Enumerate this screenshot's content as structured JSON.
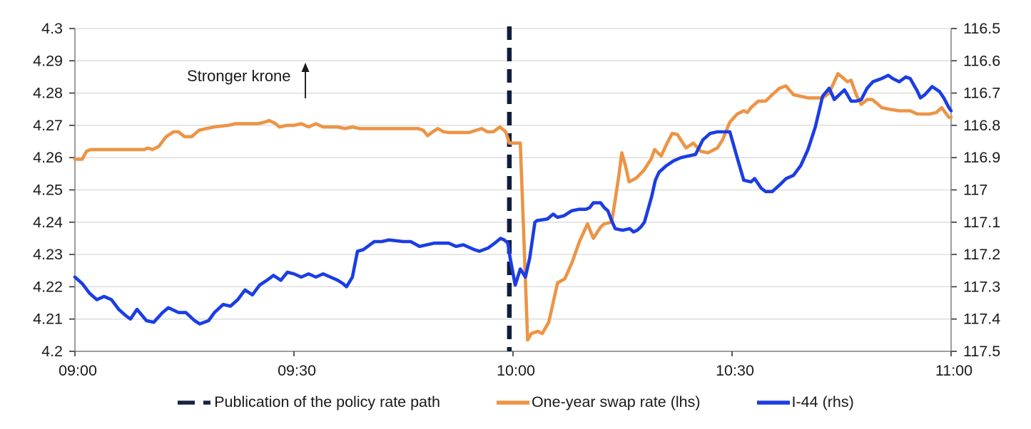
{
  "annotation": {
    "text": "Stronger krone",
    "arrow_icon": "up-arrow"
  },
  "legend": {
    "items": [
      {
        "label": "Publication of the policy rate path",
        "marker": "dashed-line",
        "color": "#16243F"
      },
      {
        "label": "One-year swap rate (lhs)",
        "marker": "solid-line",
        "color": "#EC9445"
      },
      {
        "label": "I-44 (rhs)",
        "marker": "solid-line",
        "color": "#1B3DE4"
      }
    ]
  },
  "colors": {
    "swap_rate_line": "#EC9445",
    "i44_line": "#1B3DE4",
    "event_line": "#101D3C",
    "gridline": "#d9d9d9",
    "spine": "#7f7f7f",
    "tick": "#333333",
    "text": "#1a1a1a"
  },
  "chart_data": {
    "type": "line",
    "title": "",
    "grid": "horizontal",
    "legend_position": "bottom-center",
    "x_axis": {
      "tick_labels": [
        "09:00",
        "09:30",
        "10:00",
        "10:30",
        "11:00"
      ],
      "tick_minutes": [
        0,
        30,
        60,
        90,
        120
      ],
      "range_minutes": [
        0,
        120
      ]
    },
    "y_axis_left": {
      "name": "One-year swap rate",
      "tick_labels": [
        "4.3",
        "4.29",
        "4.28",
        "4.27",
        "4.26",
        "4.25",
        "4.24",
        "4.23",
        "4.22",
        "4.21",
        "4.2"
      ],
      "range": [
        4.2,
        4.3
      ],
      "direction": "normal"
    },
    "y_axis_right": {
      "name": "I-44 index",
      "tick_labels": [
        "116.5",
        "116.6",
        "116.7",
        "116.8",
        "116.9",
        "117",
        "117.1",
        "117.2",
        "117.3",
        "117.4",
        "117.5"
      ],
      "range": [
        116.5,
        117.5
      ],
      "direction": "inverted"
    },
    "event_line": {
      "label": "Publication of the policy rate path",
      "time_minutes": 59.5,
      "style": "dashed",
      "color": "#101D3C"
    },
    "series": [
      {
        "name": "One-year swap rate (lhs)",
        "axis": "left",
        "color": "#EC9445",
        "points": [
          [
            0,
            4.2595
          ],
          [
            1,
            4.2595
          ],
          [
            1.6,
            4.262
          ],
          [
            2.2,
            4.2625
          ],
          [
            9.5,
            4.2625
          ],
          [
            10,
            4.263
          ],
          [
            10.6,
            4.2625
          ],
          [
            11.5,
            4.2635
          ],
          [
            12.5,
            4.2665
          ],
          [
            13.5,
            4.268
          ],
          [
            14.2,
            4.268
          ],
          [
            15,
            4.2665
          ],
          [
            16,
            4.2665
          ],
          [
            17,
            4.2685
          ],
          [
            18,
            4.269
          ],
          [
            19,
            4.2695
          ],
          [
            21,
            4.27
          ],
          [
            22,
            4.2705
          ],
          [
            25,
            4.2705
          ],
          [
            26,
            4.271
          ],
          [
            26.6,
            4.2715
          ],
          [
            27.5,
            4.2705
          ],
          [
            28,
            4.2695
          ],
          [
            29,
            4.27
          ],
          [
            30,
            4.27
          ],
          [
            31,
            4.2705
          ],
          [
            32,
            4.2695
          ],
          [
            33,
            4.2705
          ],
          [
            34,
            4.2695
          ],
          [
            36,
            4.2695
          ],
          [
            37,
            4.269
          ],
          [
            38,
            4.2695
          ],
          [
            39,
            4.269
          ],
          [
            47,
            4.269
          ],
          [
            47.7,
            4.2685
          ],
          [
            48.3,
            4.2668
          ],
          [
            49,
            4.268
          ],
          [
            49.7,
            4.269
          ],
          [
            50.5,
            4.268
          ],
          [
            51.2,
            4.2678
          ],
          [
            54,
            4.2678
          ],
          [
            55,
            4.2685
          ],
          [
            55.7,
            4.269
          ],
          [
            56.5,
            4.268
          ],
          [
            57.3,
            4.268
          ],
          [
            58.2,
            4.2695
          ],
          [
            59,
            4.268
          ],
          [
            59.5,
            4.2645
          ],
          [
            61,
            4.2645
          ],
          [
            61.3,
            4.2465
          ],
          [
            62,
            4.2035
          ],
          [
            62.5,
            4.2055
          ],
          [
            63.4,
            4.2062
          ],
          [
            64,
            4.2055
          ],
          [
            64.9,
            4.209
          ],
          [
            66.1,
            4.2212
          ],
          [
            67.1,
            4.2225
          ],
          [
            68.1,
            4.2276
          ],
          [
            69.1,
            4.234
          ],
          [
            70.2,
            4.2395
          ],
          [
            71,
            4.235
          ],
          [
            72,
            4.2385
          ],
          [
            72.5,
            4.2395
          ],
          [
            73.5,
            4.24
          ],
          [
            74,
            4.247
          ],
          [
            74.5,
            4.2545
          ],
          [
            74.9,
            4.2615
          ],
          [
            75.4,
            4.2575
          ],
          [
            75.9,
            4.2525
          ],
          [
            76.9,
            4.2537
          ],
          [
            77.9,
            4.256
          ],
          [
            78.9,
            4.2595
          ],
          [
            79.4,
            4.2625
          ],
          [
            80.3,
            4.2605
          ],
          [
            81,
            4.264
          ],
          [
            81.8,
            4.2675
          ],
          [
            82.5,
            4.2672
          ],
          [
            83.7,
            4.263
          ],
          [
            84.7,
            4.2645
          ],
          [
            85.7,
            4.262
          ],
          [
            86.7,
            4.2615
          ],
          [
            88,
            4.263
          ],
          [
            88.7,
            4.2655
          ],
          [
            89.7,
            4.271
          ],
          [
            90.7,
            4.2735
          ],
          [
            91.6,
            4.2745
          ],
          [
            92.1,
            4.274
          ],
          [
            92.6,
            4.2755
          ],
          [
            93.6,
            4.2775
          ],
          [
            94.6,
            4.2775
          ],
          [
            95.5,
            4.2795
          ],
          [
            96.5,
            4.2815
          ],
          [
            97.4,
            4.2822
          ],
          [
            98.4,
            4.2795
          ],
          [
            99.4,
            4.279
          ],
          [
            100.4,
            4.2785
          ],
          [
            102.4,
            4.2785
          ],
          [
            103.3,
            4.28
          ],
          [
            104.5,
            4.286
          ],
          [
            105.3,
            4.2845
          ],
          [
            105.8,
            4.2835
          ],
          [
            106.3,
            4.284
          ],
          [
            107,
            4.2795
          ],
          [
            107.7,
            4.2765
          ],
          [
            108.5,
            4.278
          ],
          [
            109.2,
            4.278
          ],
          [
            110,
            4.2765
          ],
          [
            110.5,
            4.2755
          ],
          [
            111.5,
            4.275
          ],
          [
            112.9,
            4.2745
          ],
          [
            114.4,
            4.2745
          ],
          [
            115.4,
            4.2735
          ],
          [
            117.1,
            4.2735
          ],
          [
            118,
            4.274
          ],
          [
            118.7,
            4.2755
          ],
          [
            119.7,
            4.2725
          ],
          [
            120,
            4.2725
          ]
        ]
      },
      {
        "name": "I-44 (rhs)",
        "axis": "right",
        "color": "#1B3DE4",
        "points": [
          [
            0,
            117.27
          ],
          [
            1,
            117.29
          ],
          [
            2,
            117.32
          ],
          [
            3,
            117.34
          ],
          [
            4,
            117.33
          ],
          [
            5,
            117.34
          ],
          [
            6,
            117.37
          ],
          [
            7,
            117.39
          ],
          [
            7.6,
            117.4
          ],
          [
            8.5,
            117.37
          ],
          [
            9.8,
            117.405
          ],
          [
            10.8,
            117.41
          ],
          [
            12,
            117.38
          ],
          [
            12.8,
            117.365
          ],
          [
            14.2,
            117.38
          ],
          [
            15.2,
            117.38
          ],
          [
            16.4,
            117.405
          ],
          [
            17.1,
            117.415
          ],
          [
            18.3,
            117.405
          ],
          [
            19.1,
            117.38
          ],
          [
            20.3,
            117.355
          ],
          [
            21.3,
            117.36
          ],
          [
            22.3,
            117.34
          ],
          [
            23.3,
            117.31
          ],
          [
            24.3,
            117.325
          ],
          [
            25.3,
            117.295
          ],
          [
            26.3,
            117.28
          ],
          [
            27.2,
            117.265
          ],
          [
            28.2,
            117.28
          ],
          [
            29.1,
            117.255
          ],
          [
            30,
            117.26
          ],
          [
            31,
            117.27
          ],
          [
            32,
            117.26
          ],
          [
            33,
            117.27
          ],
          [
            34,
            117.26
          ],
          [
            35,
            117.27
          ],
          [
            36,
            117.28
          ],
          [
            36.7,
            117.29
          ],
          [
            37.2,
            117.3
          ],
          [
            38,
            117.27
          ],
          [
            38.7,
            117.19
          ],
          [
            39.5,
            117.185
          ],
          [
            41,
            117.16
          ],
          [
            42,
            117.16
          ],
          [
            43,
            117.155
          ],
          [
            45,
            117.16
          ],
          [
            46,
            117.16
          ],
          [
            47.2,
            117.175
          ],
          [
            48.2,
            117.17
          ],
          [
            49.2,
            117.165
          ],
          [
            51.2,
            117.165
          ],
          [
            52.2,
            117.175
          ],
          [
            53.2,
            117.17
          ],
          [
            54.7,
            117.185
          ],
          [
            55.4,
            117.19
          ],
          [
            56.6,
            117.18
          ],
          [
            57.5,
            117.165
          ],
          [
            58.3,
            117.15
          ],
          [
            58.8,
            117.155
          ],
          [
            59.3,
            117.165
          ],
          [
            59.6,
            117.21
          ],
          [
            60.3,
            117.295
          ],
          [
            61,
            117.245
          ],
          [
            61.7,
            117.27
          ],
          [
            62.3,
            117.21
          ],
          [
            63,
            117.1
          ],
          [
            63.3,
            117.095
          ],
          [
            64.7,
            117.09
          ],
          [
            65.5,
            117.075
          ],
          [
            66.1,
            117.085
          ],
          [
            67,
            117.08
          ],
          [
            68,
            117.065
          ],
          [
            69,
            117.06
          ],
          [
            70,
            117.06
          ],
          [
            70.5,
            117.055
          ],
          [
            71,
            117.04
          ],
          [
            72,
            117.04
          ],
          [
            72.5,
            117.055
          ],
          [
            73,
            117.065
          ],
          [
            73.5,
            117.095
          ],
          [
            74,
            117.12
          ],
          [
            75,
            117.125
          ],
          [
            76,
            117.12
          ],
          [
            76.5,
            117.13
          ],
          [
            77,
            117.125
          ],
          [
            77.5,
            117.115
          ],
          [
            78,
            117.1
          ],
          [
            78.5,
            117.06
          ],
          [
            79,
            117.02
          ],
          [
            79.5,
            116.97
          ],
          [
            80,
            116.945
          ],
          [
            81,
            116.925
          ],
          [
            82,
            116.91
          ],
          [
            83,
            116.9
          ],
          [
            84,
            116.895
          ],
          [
            85,
            116.89
          ],
          [
            86,
            116.845
          ],
          [
            87,
            116.825
          ],
          [
            88,
            116.82
          ],
          [
            89.7,
            116.82
          ],
          [
            90.7,
            116.9
          ],
          [
            91.6,
            116.97
          ],
          [
            92.6,
            116.975
          ],
          [
            93.1,
            116.965
          ],
          [
            94,
            116.995
          ],
          [
            94.6,
            117.005
          ],
          [
            95.5,
            117.005
          ],
          [
            96.5,
            116.985
          ],
          [
            97.4,
            116.965
          ],
          [
            98.4,
            116.955
          ],
          [
            99.4,
            116.925
          ],
          [
            100.4,
            116.875
          ],
          [
            101.4,
            116.805
          ],
          [
            102.4,
            116.71
          ],
          [
            103.3,
            116.685
          ],
          [
            104,
            116.72
          ],
          [
            104.7,
            116.705
          ],
          [
            105.4,
            116.69
          ],
          [
            106.3,
            116.725
          ],
          [
            107,
            116.725
          ],
          [
            107.7,
            116.72
          ],
          [
            108.5,
            116.685
          ],
          [
            109.3,
            116.665
          ],
          [
            110.5,
            116.655
          ],
          [
            111.4,
            116.645
          ],
          [
            112,
            116.655
          ],
          [
            112.9,
            116.665
          ],
          [
            113.8,
            116.65
          ],
          [
            114.4,
            116.655
          ],
          [
            115.4,
            116.695
          ],
          [
            115.8,
            116.715
          ],
          [
            116.4,
            116.705
          ],
          [
            117.4,
            116.68
          ],
          [
            118.4,
            116.695
          ],
          [
            119,
            116.715
          ],
          [
            119.7,
            116.745
          ],
          [
            120,
            116.755
          ]
        ]
      }
    ]
  }
}
